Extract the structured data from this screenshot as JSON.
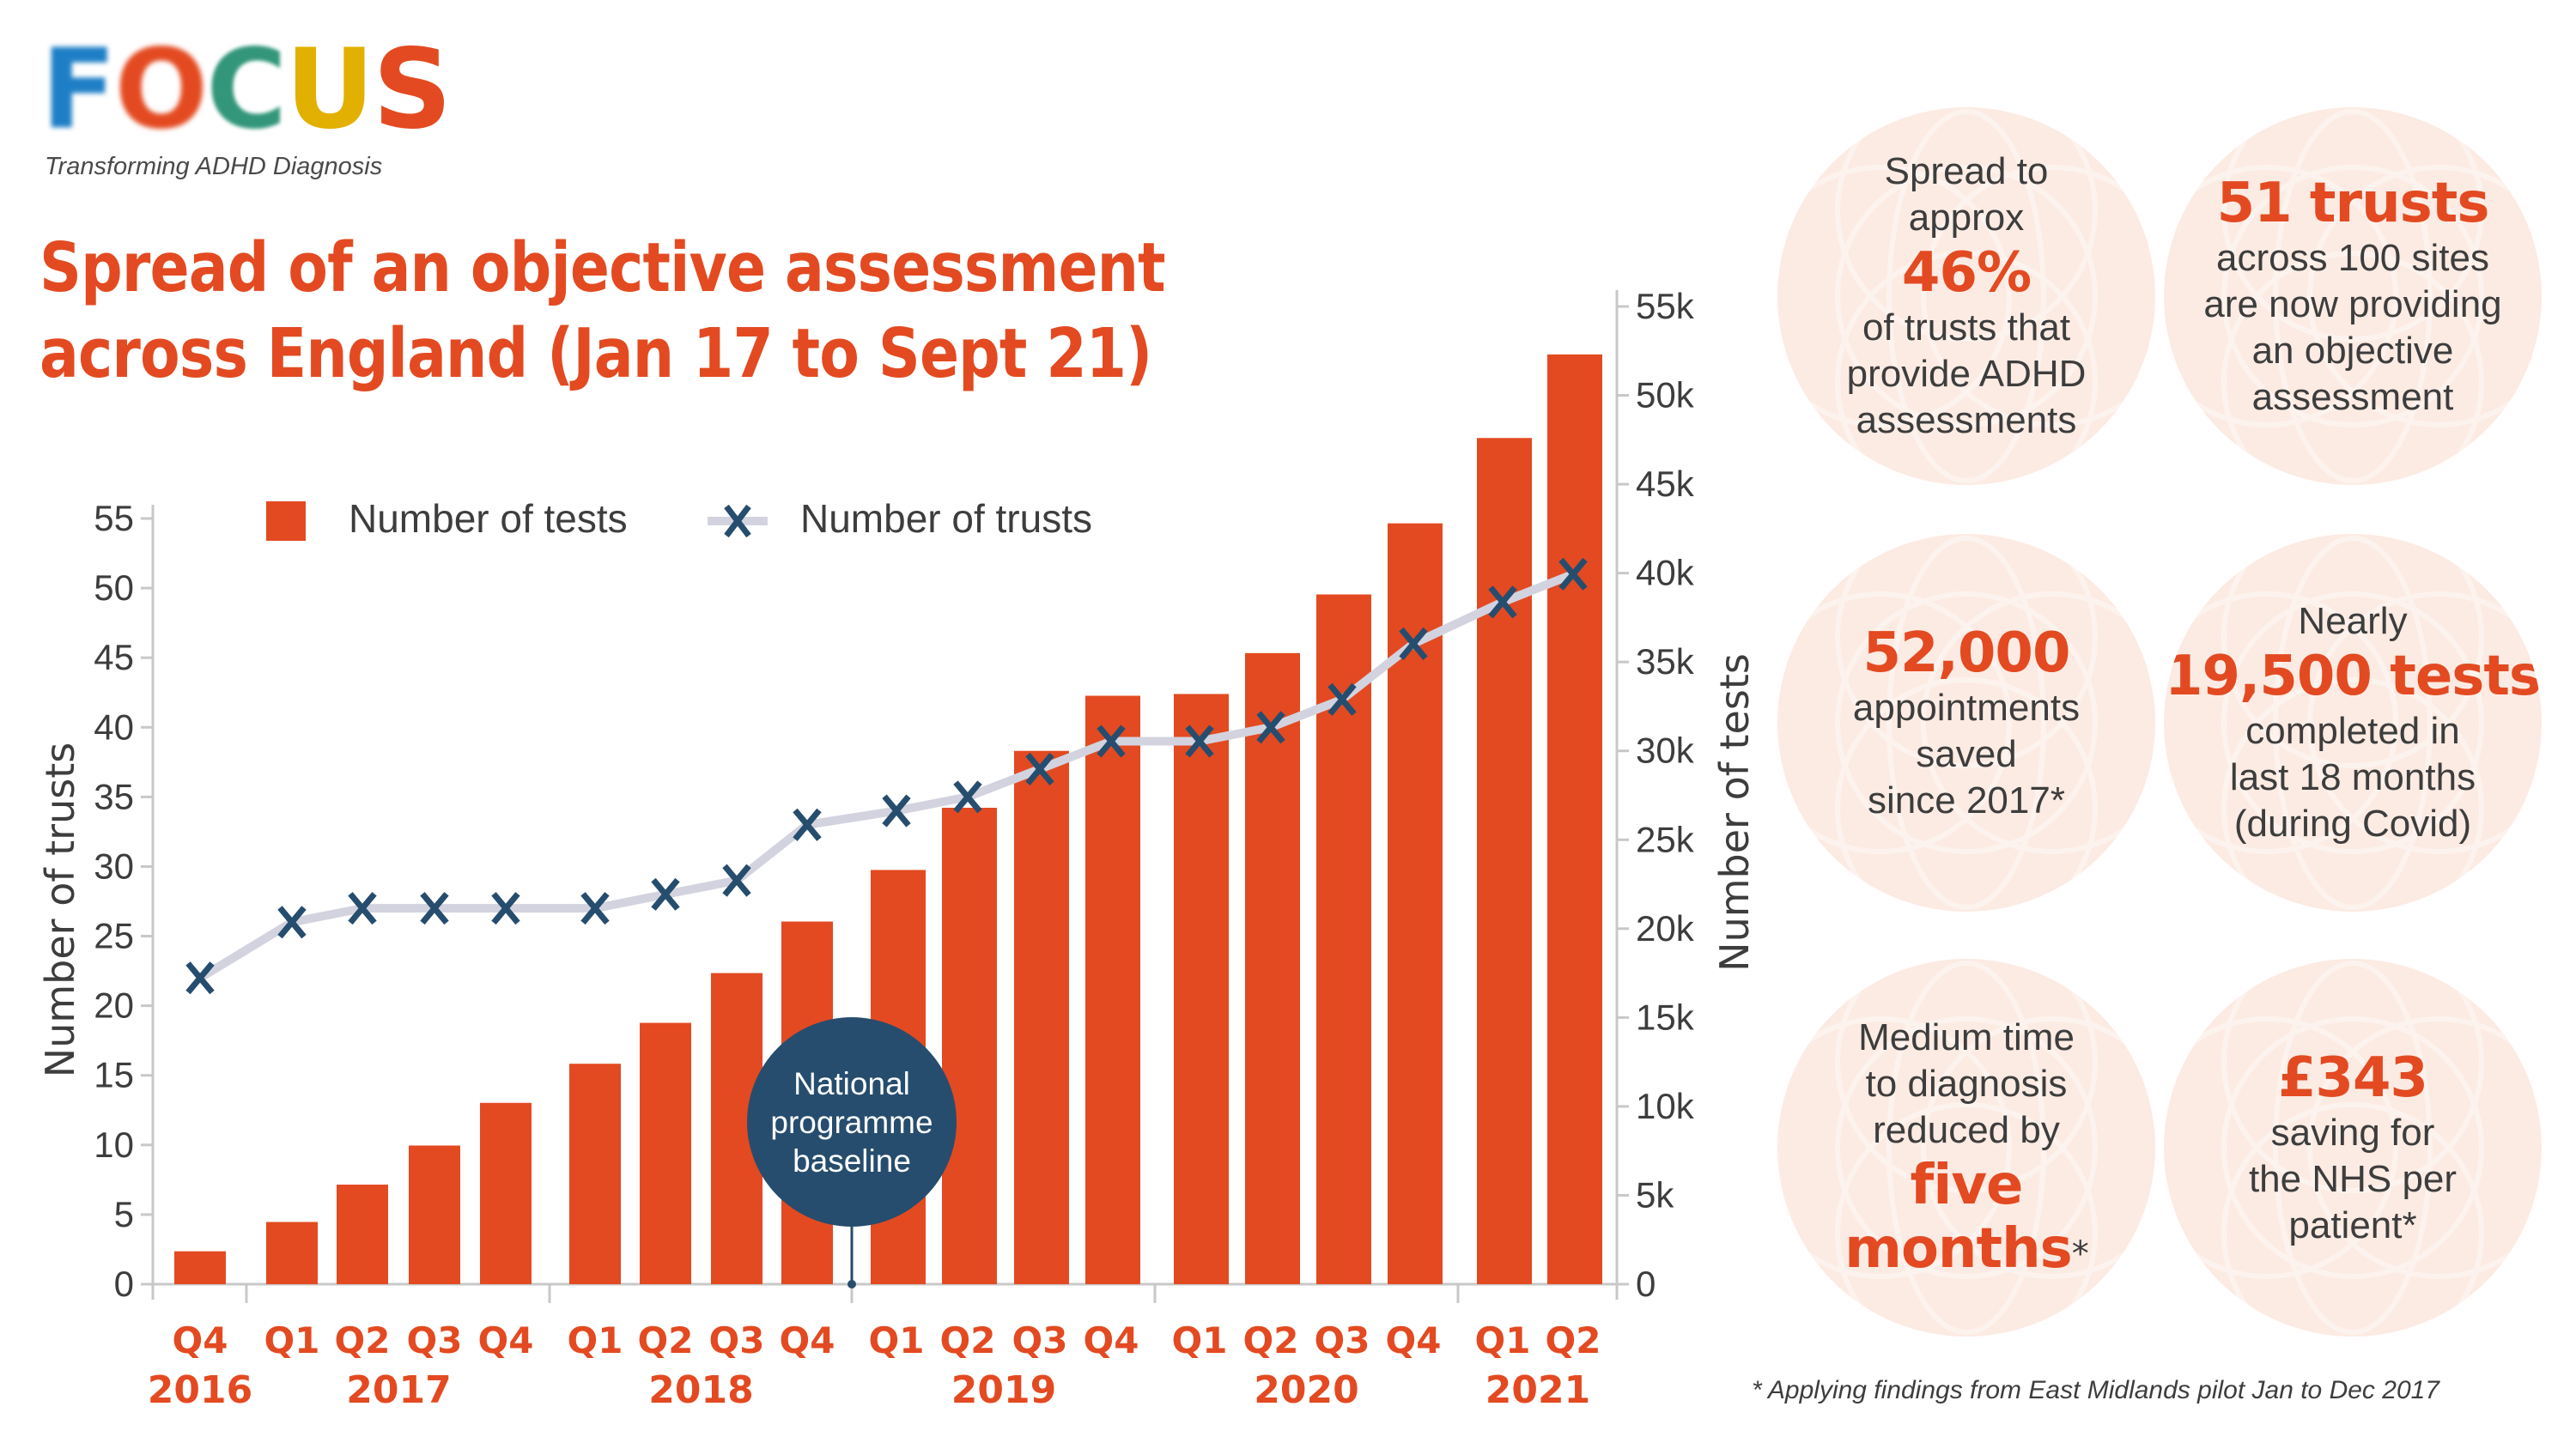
{
  "header": {
    "logo_letters": [
      "F",
      "O",
      "C",
      "U",
      "S"
    ],
    "tagline": "Transforming ADHD Diagnosis",
    "title_line1": "Spread of an objective assessment",
    "title_line2": "across England (Jan 17 to Sept 21)"
  },
  "colors": {
    "bars": "#e34a21",
    "line": "#d3d3e0",
    "markers": "#264d6e",
    "baseline_bubble": "#264d6e",
    "stat_circle": "#fcebe3",
    "accent": "#e34a21",
    "text": "#3d3d3d"
  },
  "annotation": {
    "baseline_label_lines": [
      "National",
      "programme",
      "baseline"
    ]
  },
  "stats": [
    {
      "pre": [
        "Spread to",
        "approx"
      ],
      "big": "46%",
      "post": [
        "of trusts that",
        "provide ADHD",
        "assessments"
      ]
    },
    {
      "pre": [],
      "big": "51 trusts",
      "post": [
        "across 100 sites",
        "are now providing",
        "an objective",
        "assessment"
      ]
    },
    {
      "pre": [],
      "big": "52,000",
      "post": [
        "appointments",
        "saved",
        "since 2017*"
      ]
    },
    {
      "pre": [
        "Nearly"
      ],
      "big": "19,500 tests",
      "post": [
        "completed in",
        "last 18 months",
        "(during Covid)"
      ]
    },
    {
      "pre": [
        "Medium time",
        "to diagnosis",
        "reduced by"
      ],
      "big": "five",
      "big2": "months",
      "big2_suffix": "*",
      "post": []
    },
    {
      "pre": [],
      "big": "£343",
      "post": [
        "saving for",
        "the NHS per",
        "patient*"
      ]
    }
  ],
  "footnote": "* Applying findings from East Midlands pilot Jan to Dec 2017",
  "chart_data": {
    "type": "bar",
    "title": "Spread of an objective assessment across England (Jan 17 to Sept 21)",
    "categories": [
      "Q4 2016",
      "Q1 2017",
      "Q2 2017",
      "Q3 2017",
      "Q4 2017",
      "Q1 2018",
      "Q2 2018",
      "Q3 2018",
      "Q4 2018",
      "Q1 2019",
      "Q2 2019",
      "Q3 2019",
      "Q4 2019",
      "Q1 2020",
      "Q2 2020",
      "Q3 2020",
      "Q4 2020",
      "Q1 2021",
      "Q2 2021"
    ],
    "quarter_labels": [
      "Q4",
      "Q1",
      "Q2",
      "Q3",
      "Q4",
      "Q1",
      "Q2",
      "Q3",
      "Q4",
      "Q1",
      "Q2",
      "Q3",
      "Q4",
      "Q1",
      "Q2",
      "Q3",
      "Q4",
      "Q1",
      "Q2"
    ],
    "year_groups": [
      {
        "label": "2016",
        "start": 0,
        "end": 0
      },
      {
        "label": "2017",
        "start": 1,
        "end": 4
      },
      {
        "label": "2018",
        "start": 5,
        "end": 8
      },
      {
        "label": "2019",
        "start": 9,
        "end": 12
      },
      {
        "label": "2020",
        "start": 13,
        "end": 16
      },
      {
        "label": "2021",
        "start": 17,
        "end": 18
      }
    ],
    "series": [
      {
        "name": "Number of tests",
        "type": "bar",
        "axis": "right",
        "values": [
          1850,
          3500,
          5600,
          7800,
          10200,
          12400,
          14700,
          17500,
          20400,
          23300,
          26800,
          30000,
          33100,
          33200,
          35500,
          38800,
          42800,
          47600,
          52300
        ]
      },
      {
        "name": "Number of trusts",
        "type": "line",
        "axis": "left",
        "marker": "x",
        "values": [
          22,
          26,
          27,
          27,
          27,
          27,
          28,
          29,
          33,
          34,
          35,
          37,
          39,
          39,
          40,
          42,
          46,
          49,
          51
        ]
      }
    ],
    "left_axis": {
      "label": "Number of trusts",
      "ylim": [
        0,
        55
      ],
      "ticks": [
        "0",
        "5",
        "10",
        "15",
        "20",
        "25",
        "30",
        "35",
        "40",
        "45",
        "50",
        "55"
      ]
    },
    "right_axis": {
      "label": "Number of tests",
      "ylim": [
        0,
        55000
      ],
      "ticks": [
        "0",
        "5k",
        "10k",
        "15k",
        "20k",
        "25k",
        "30k",
        "35k",
        "40k",
        "45k",
        "50k",
        "55k"
      ]
    },
    "baseline_marker_between": [
      8,
      9
    ],
    "legend": {
      "placement": "top-left",
      "items": [
        "Number of tests",
        "Number of trusts"
      ]
    },
    "grid": false
  }
}
